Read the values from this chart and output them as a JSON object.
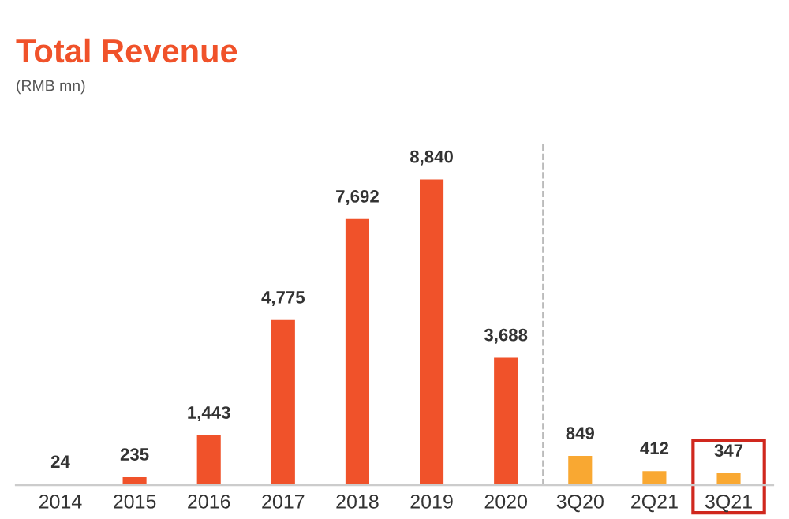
{
  "chart_data": {
    "type": "bar",
    "title": "Total Revenue",
    "subtitle": "(RMB mn)",
    "categories": [
      "2014",
      "2015",
      "2016",
      "2017",
      "2018",
      "2019",
      "2020",
      "3Q20",
      "2Q21",
      "3Q21"
    ],
    "values": [
      24,
      235,
      1443,
      4775,
      7692,
      8840,
      3688,
      849,
      412,
      347
    ],
    "colors": [
      "#f0522a",
      "#f0522a",
      "#f0522a",
      "#f0522a",
      "#f0522a",
      "#f0522a",
      "#f0522a",
      "#f9a832",
      "#f9a832",
      "#f9a832"
    ],
    "value_labels": [
      "24",
      "235",
      "1,443",
      "4,775",
      "7,692",
      "8,840",
      "3,688",
      "849",
      "412",
      "347"
    ],
    "grid": false,
    "legend": false
  }
}
